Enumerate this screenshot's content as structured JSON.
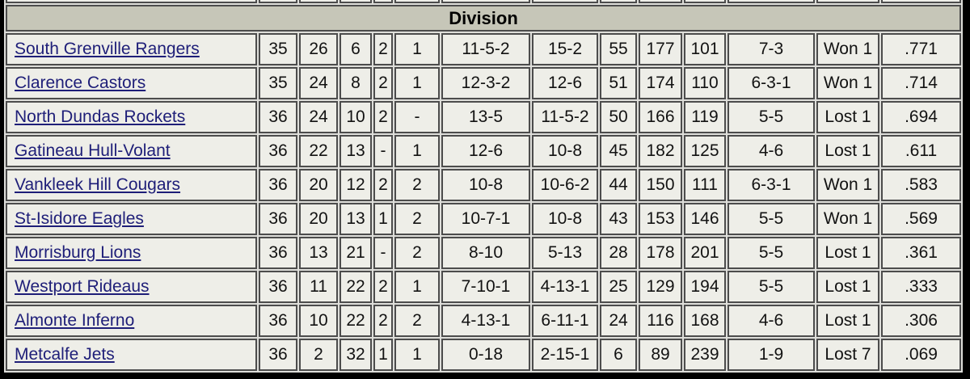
{
  "colors": {
    "frame": "#000000",
    "header_bg": "#c6c6b8",
    "cell_bg": "#eeeee8",
    "grid_border": "#4c4c4c",
    "link": "#1e1e78"
  },
  "table": {
    "title": "Division",
    "rows": [
      {
        "team": "South Grenville Rangers",
        "cells": [
          "35",
          "26",
          "6",
          "2",
          "1",
          "11-5-2",
          "15-2",
          "55",
          "177",
          "101",
          "7-3",
          "Won 1",
          ".771"
        ]
      },
      {
        "team": "Clarence Castors",
        "cells": [
          "35",
          "24",
          "8",
          "2",
          "1",
          "12-3-2",
          "12-6",
          "51",
          "174",
          "110",
          "6-3-1",
          "Won 1",
          ".714"
        ]
      },
      {
        "team": "North Dundas Rockets",
        "cells": [
          "36",
          "24",
          "10",
          "2",
          "-",
          "13-5",
          "11-5-2",
          "50",
          "166",
          "119",
          "5-5",
          "Lost 1",
          ".694"
        ]
      },
      {
        "team": "Gatineau Hull-Volant",
        "cells": [
          "36",
          "22",
          "13",
          "-",
          "1",
          "12-6",
          "10-8",
          "45",
          "182",
          "125",
          "4-6",
          "Lost 1",
          ".611"
        ]
      },
      {
        "team": "Vankleek Hill Cougars",
        "cells": [
          "36",
          "20",
          "12",
          "2",
          "2",
          "10-8",
          "10-6-2",
          "44",
          "150",
          "111",
          "6-3-1",
          "Won 1",
          ".583"
        ]
      },
      {
        "team": "St-Isidore Eagles",
        "cells": [
          "36",
          "20",
          "13",
          "1",
          "2",
          "10-7-1",
          "10-8",
          "43",
          "153",
          "146",
          "5-5",
          "Won 1",
          ".569"
        ]
      },
      {
        "team": "Morrisburg Lions",
        "cells": [
          "36",
          "13",
          "21",
          "-",
          "2",
          "8-10",
          "5-13",
          "28",
          "178",
          "201",
          "5-5",
          "Lost 1",
          ".361"
        ]
      },
      {
        "team": "Westport Rideaus",
        "cells": [
          "36",
          "11",
          "22",
          "2",
          "1",
          "7-10-1",
          "4-13-1",
          "25",
          "129",
          "194",
          "5-5",
          "Lost 1",
          ".333"
        ]
      },
      {
        "team": "Almonte Inferno",
        "cells": [
          "36",
          "10",
          "22",
          "2",
          "2",
          "4-13-1",
          "6-11-1",
          "24",
          "116",
          "168",
          "4-6",
          "Lost 1",
          ".306"
        ]
      },
      {
        "team": "Metcalfe Jets",
        "cells": [
          "36",
          "2",
          "32",
          "1",
          "1",
          "0-18",
          "2-15-1",
          "6",
          "89",
          "239",
          "1-9",
          "Lost 7",
          ".069"
        ]
      }
    ]
  }
}
